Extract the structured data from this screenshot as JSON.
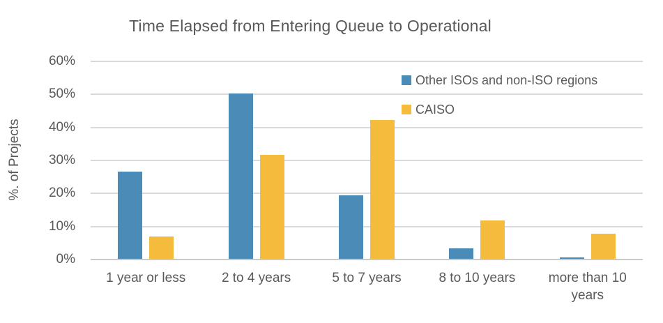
{
  "chart_data": {
    "type": "bar",
    "title": "Time Elapsed from Entering Queue to Operational",
    "xlabel": "",
    "ylabel": "%. of Projects",
    "categories": [
      "1 year or less",
      "2 to 4 years",
      "5 to 7 years",
      "8 to 10 years",
      "more than 10 years"
    ],
    "series": [
      {
        "name": "Other ISOs and non-ISO regions",
        "color": "#4A8BB8",
        "values": [
          26.6,
          50.2,
          19.4,
          3.4,
          0.7
        ]
      },
      {
        "name": "CAISO",
        "color": "#F5BB3C",
        "values": [
          6.9,
          31.7,
          42.2,
          11.9,
          7.9
        ]
      }
    ],
    "ylim": [
      0,
      60
    ],
    "ytick_step": 10,
    "ytick_suffix": "%",
    "grid": true,
    "legend_position": "inside-upper-right",
    "colors": {
      "text": "#595959",
      "gridline": "#d9d9d9",
      "axis_line": "#c9c9c9",
      "background": "#ffffff"
    }
  }
}
